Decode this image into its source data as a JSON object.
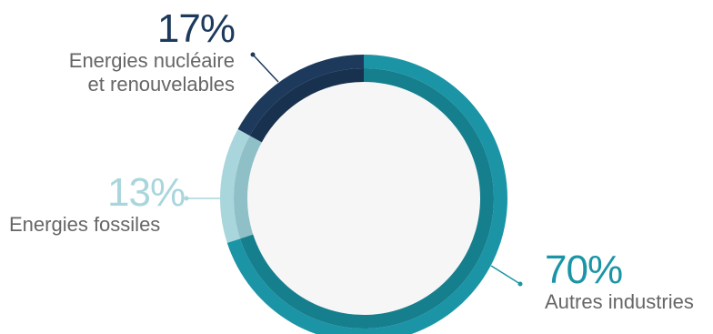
{
  "chart_data": {
    "type": "pie",
    "categories": [
      "Autres industries",
      "Energies fossiles",
      "Energies nucléaire et renouvelables"
    ],
    "values": [
      70,
      13,
      17
    ],
    "value_labels": [
      "70%",
      "13%",
      "17%"
    ],
    "donut": true,
    "colors": [
      "#1b95a6",
      "#a9d6dc",
      "#1d3a5c"
    ],
    "inner_ring_colors": [
      "#167f8e",
      "#8fc0c7",
      "#17314f"
    ],
    "legend": "direct labels"
  },
  "labels": {
    "nuclear": {
      "pct": "17%",
      "line1": "Energies nucléaire",
      "line2": "et renouvelables"
    },
    "fossil": {
      "pct": "13%",
      "line1": "Energies fossiles"
    },
    "other": {
      "pct": "70%",
      "line1": "Autres industries"
    }
  }
}
